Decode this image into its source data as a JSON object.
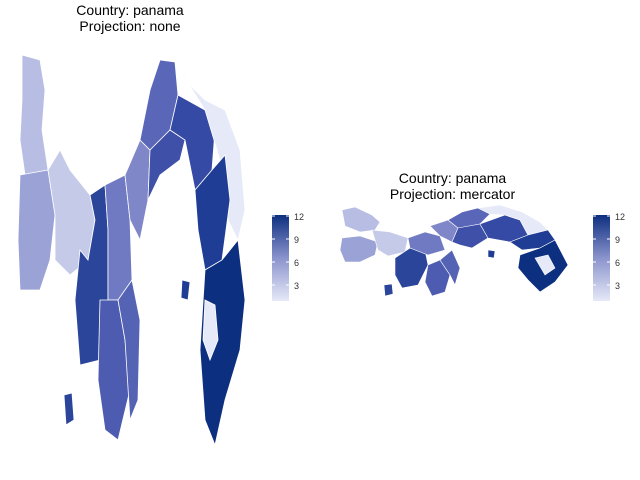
{
  "panels": [
    {
      "title_line1": "Country: panama",
      "title_line2": "Projection: none",
      "legend": {
        "ticks": [
          3,
          6,
          9,
          12
        ],
        "min": 1,
        "max": 12
      }
    },
    {
      "title_line1": "Country: panama",
      "title_line2": "Projection: mercator",
      "legend": {
        "ticks": [
          3,
          6,
          9,
          12
        ],
        "min": 1,
        "max": 12
      }
    }
  ],
  "colors": {
    "low": "#e6e9f7",
    "high": "#0d2f80",
    "border": "#ffffff"
  },
  "regions": {
    "values": [
      3,
      4,
      2,
      5,
      11,
      10,
      6,
      7,
      9,
      12,
      8,
      1,
      11,
      6,
      5,
      10,
      4
    ]
  }
}
